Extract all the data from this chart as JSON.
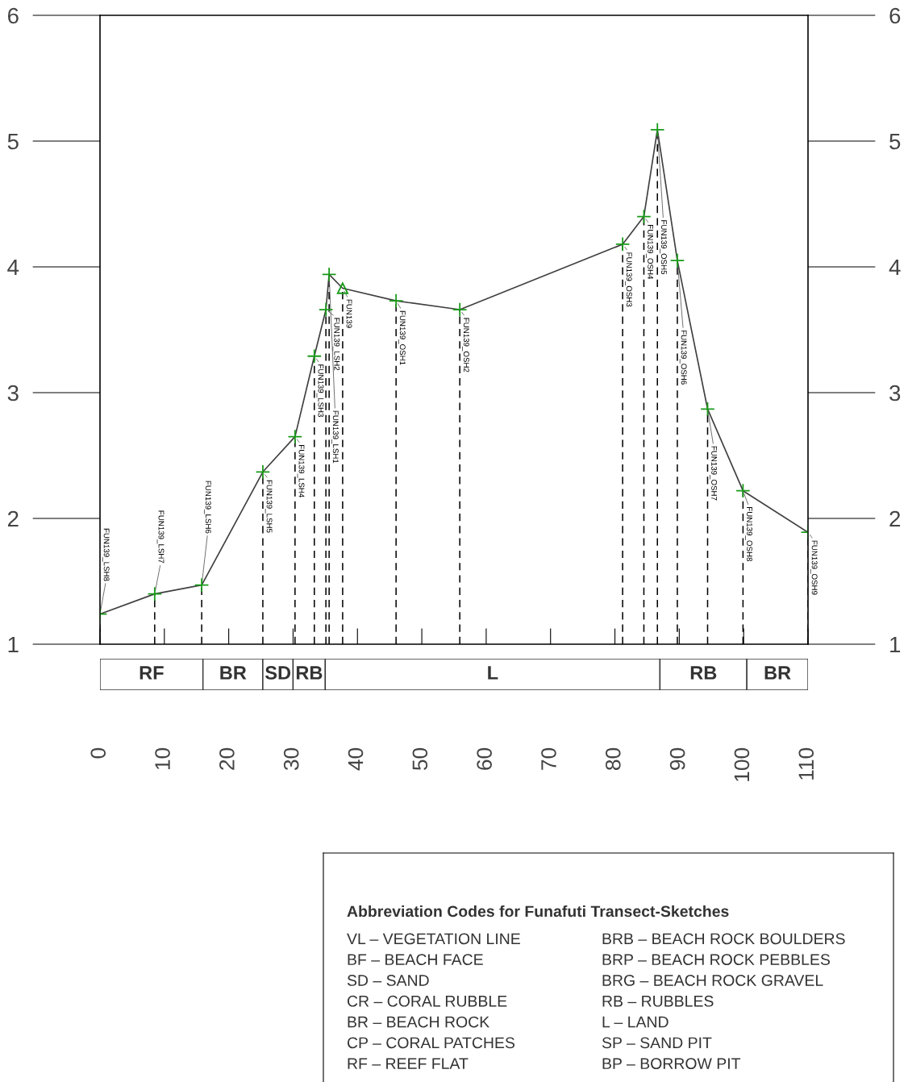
{
  "chart_data": [
    {
      "type": "line",
      "x": [
        0,
        8.5,
        15.8,
        25.3,
        30.3,
        33.3,
        35.1,
        35.6,
        37.7,
        46.0,
        55.9,
        81.2,
        84.5,
        86.6,
        89.7,
        94.4,
        99.9,
        110
      ],
      "series": [
        {
          "type": "line",
          "color": "#404040",
          "marker": "none",
          "line_style": "solid",
          "values": [
            1.24,
            1.4,
            1.47,
            2.37,
            2.65,
            3.29,
            3.66,
            3.94,
            3.83,
            3.73,
            3.66,
            4.18,
            4.4,
            5.09,
            4.05,
            2.87,
            2.22,
            1.89
          ]
        },
        {
          "type": "lollipop",
          "color": "#1a9a1a",
          "marker": "cross",
          "line_style": "dashed",
          "x": [
            0,
            8.5,
            15.8,
            25.3,
            30.3,
            33.3,
            35.1,
            35.6,
            46.0,
            55.9,
            81.2,
            84.5,
            86.6,
            89.7,
            94.4,
            99.9,
            110
          ],
          "values": [
            1.24,
            1.4,
            1.47,
            2.37,
            2.65,
            3.29,
            3.66,
            3.94,
            3.73,
            3.66,
            4.18,
            4.4,
            5.09,
            4.05,
            2.87,
            2.22,
            1.89
          ]
        },
        {
          "type": "lollipop",
          "color": "#1a9a1a",
          "marker": "triangle",
          "line_style": "dashed",
          "x": [
            37.7
          ],
          "values": [
            3.83
          ]
        }
      ],
      "xlim": [
        0,
        110
      ],
      "xticks": [
        0,
        10,
        20,
        30,
        40,
        50,
        60,
        70,
        80,
        90,
        100,
        110
      ],
      "ylim": [
        1,
        6
      ],
      "yticks": [
        1,
        2,
        3,
        4,
        5,
        6
      ],
      "y2lim": [
        1,
        6
      ],
      "y2ticks": [
        1,
        2,
        3,
        4,
        5,
        6
      ],
      "grid": false,
      "legend": false,
      "annotations": [
        {
          "text": "FUN139_LSH8",
          "x": 0,
          "y": 1.24
        },
        {
          "text": "FUN139_LSH7",
          "x": 8.5,
          "y": 1.4
        },
        {
          "text": "FUN139_LSH6",
          "x": 15.8,
          "y": 1.47
        },
        {
          "text": "FUN139_LSH5",
          "x": 25.3,
          "y": 2.37
        },
        {
          "text": "FUN139_LSH4",
          "x": 30.3,
          "y": 2.65
        },
        {
          "text": "FUN139_LSH3",
          "x": 33.3,
          "y": 3.29
        },
        {
          "text": "FUN139_LSH2",
          "x": 35.1,
          "y": 3.66
        },
        {
          "text": "FUN139_LSH1",
          "x": 35.6,
          "y": 3.94
        },
        {
          "text": "FUN139",
          "x": 37.7,
          "y": 3.83
        },
        {
          "text": "FUN139_OSH1",
          "x": 46.0,
          "y": 3.73
        },
        {
          "text": "FUN139_OSH2",
          "x": 55.9,
          "y": 3.66
        },
        {
          "text": "FUN139_OSH3",
          "x": 81.2,
          "y": 4.18
        },
        {
          "text": "FUN139_OSH4",
          "x": 84.5,
          "y": 4.4
        },
        {
          "text": "FUN139_OSH5",
          "x": 86.6,
          "y": 5.09
        },
        {
          "text": "FUN139_OSH6",
          "x": 89.7,
          "y": 4.05
        },
        {
          "text": "FUN139_OSH7",
          "x": 94.4,
          "y": 2.87
        },
        {
          "text": "FUN139_OSH8",
          "x": 99.9,
          "y": 2.22
        },
        {
          "text": "FUN139_OSH9",
          "x": 110,
          "y": 1.89
        }
      ]
    },
    {
      "type": "bar",
      "orientation": "horizontal",
      "stacked": true,
      "categories": [
        null
      ],
      "xlim": [
        0,
        110
      ],
      "series": [
        {
          "name": "RF",
          "color": "#ffffff",
          "values": [
            16
          ]
        },
        {
          "name": "BR",
          "color": "#ffffff",
          "values": [
            9.3
          ]
        },
        {
          "name": "SD",
          "color": "#ffffff",
          "values": [
            4.7
          ]
        },
        {
          "name": "RB",
          "color": "#ffffff",
          "values": [
            5
          ]
        },
        {
          "name": "L",
          "color": "#ffffff",
          "values": [
            52
          ]
        },
        {
          "name": "RB",
          "color": "#ffffff",
          "values": [
            13.5
          ]
        },
        {
          "name": "BR",
          "color": "#ffffff",
          "values": [
            9.5
          ]
        }
      ]
    },
    {
      "type": "other",
      "title": "Abbreviation Codes for Funafuti Transect-Sketches",
      "annotations": [
        "VL – VEGETATION LINE",
        "BF – BEACH FACE",
        "SD – SAND",
        "CR – CORAL RUBBLE",
        "BR – BEACH ROCK",
        "CP – CORAL PATCHES",
        "RF – REEF FLAT",
        "BRB – BEACH ROCK BOULDERS",
        "BRP – BEACH ROCK PEBBLES",
        "BRG – BEACH ROCK GRAVEL",
        "RB – RUBBLES",
        "L – LAND",
        "SP – SAND PIT",
        "BP – BORROW PIT"
      ]
    }
  ]
}
